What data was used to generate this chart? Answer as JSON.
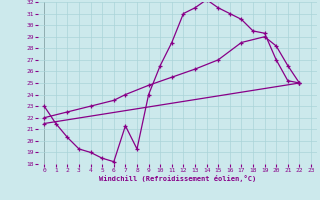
{
  "xlabel": "Windchill (Refroidissement éolien,°C)",
  "xlim": [
    -0.5,
    23.5
  ],
  "ylim": [
    18,
    32
  ],
  "yticks": [
    18,
    19,
    20,
    21,
    22,
    23,
    24,
    25,
    26,
    27,
    28,
    29,
    30,
    31,
    32
  ],
  "xticks": [
    0,
    1,
    2,
    3,
    4,
    5,
    6,
    7,
    8,
    9,
    10,
    11,
    12,
    13,
    14,
    15,
    16,
    17,
    18,
    19,
    20,
    21,
    22,
    23
  ],
  "bg_color": "#cce9ec",
  "line_color": "#880088",
  "grid_color": "#aad4d8",
  "line1_x": [
    0,
    1,
    2,
    3,
    4,
    5,
    6,
    7,
    8,
    9,
    10,
    11,
    12,
    13,
    14,
    15,
    16,
    17,
    18,
    19,
    20,
    21,
    22
  ],
  "line1_y": [
    23.0,
    21.5,
    20.3,
    19.3,
    19.0,
    18.5,
    18.2,
    21.3,
    19.3,
    24.0,
    26.5,
    28.5,
    31.0,
    31.5,
    32.2,
    31.5,
    31.0,
    30.5,
    29.5,
    29.3,
    27.0,
    25.2,
    25.0
  ],
  "line2_x": [
    0,
    2,
    4,
    6,
    7,
    9,
    11,
    13,
    15,
    17,
    19,
    20,
    21,
    22
  ],
  "line2_y": [
    22.0,
    22.5,
    23.0,
    23.5,
    24.0,
    24.8,
    25.5,
    26.2,
    27.0,
    28.5,
    29.0,
    28.2,
    26.5,
    25.0
  ],
  "line3_x": [
    0,
    22
  ],
  "line3_y": [
    21.5,
    25.0
  ]
}
